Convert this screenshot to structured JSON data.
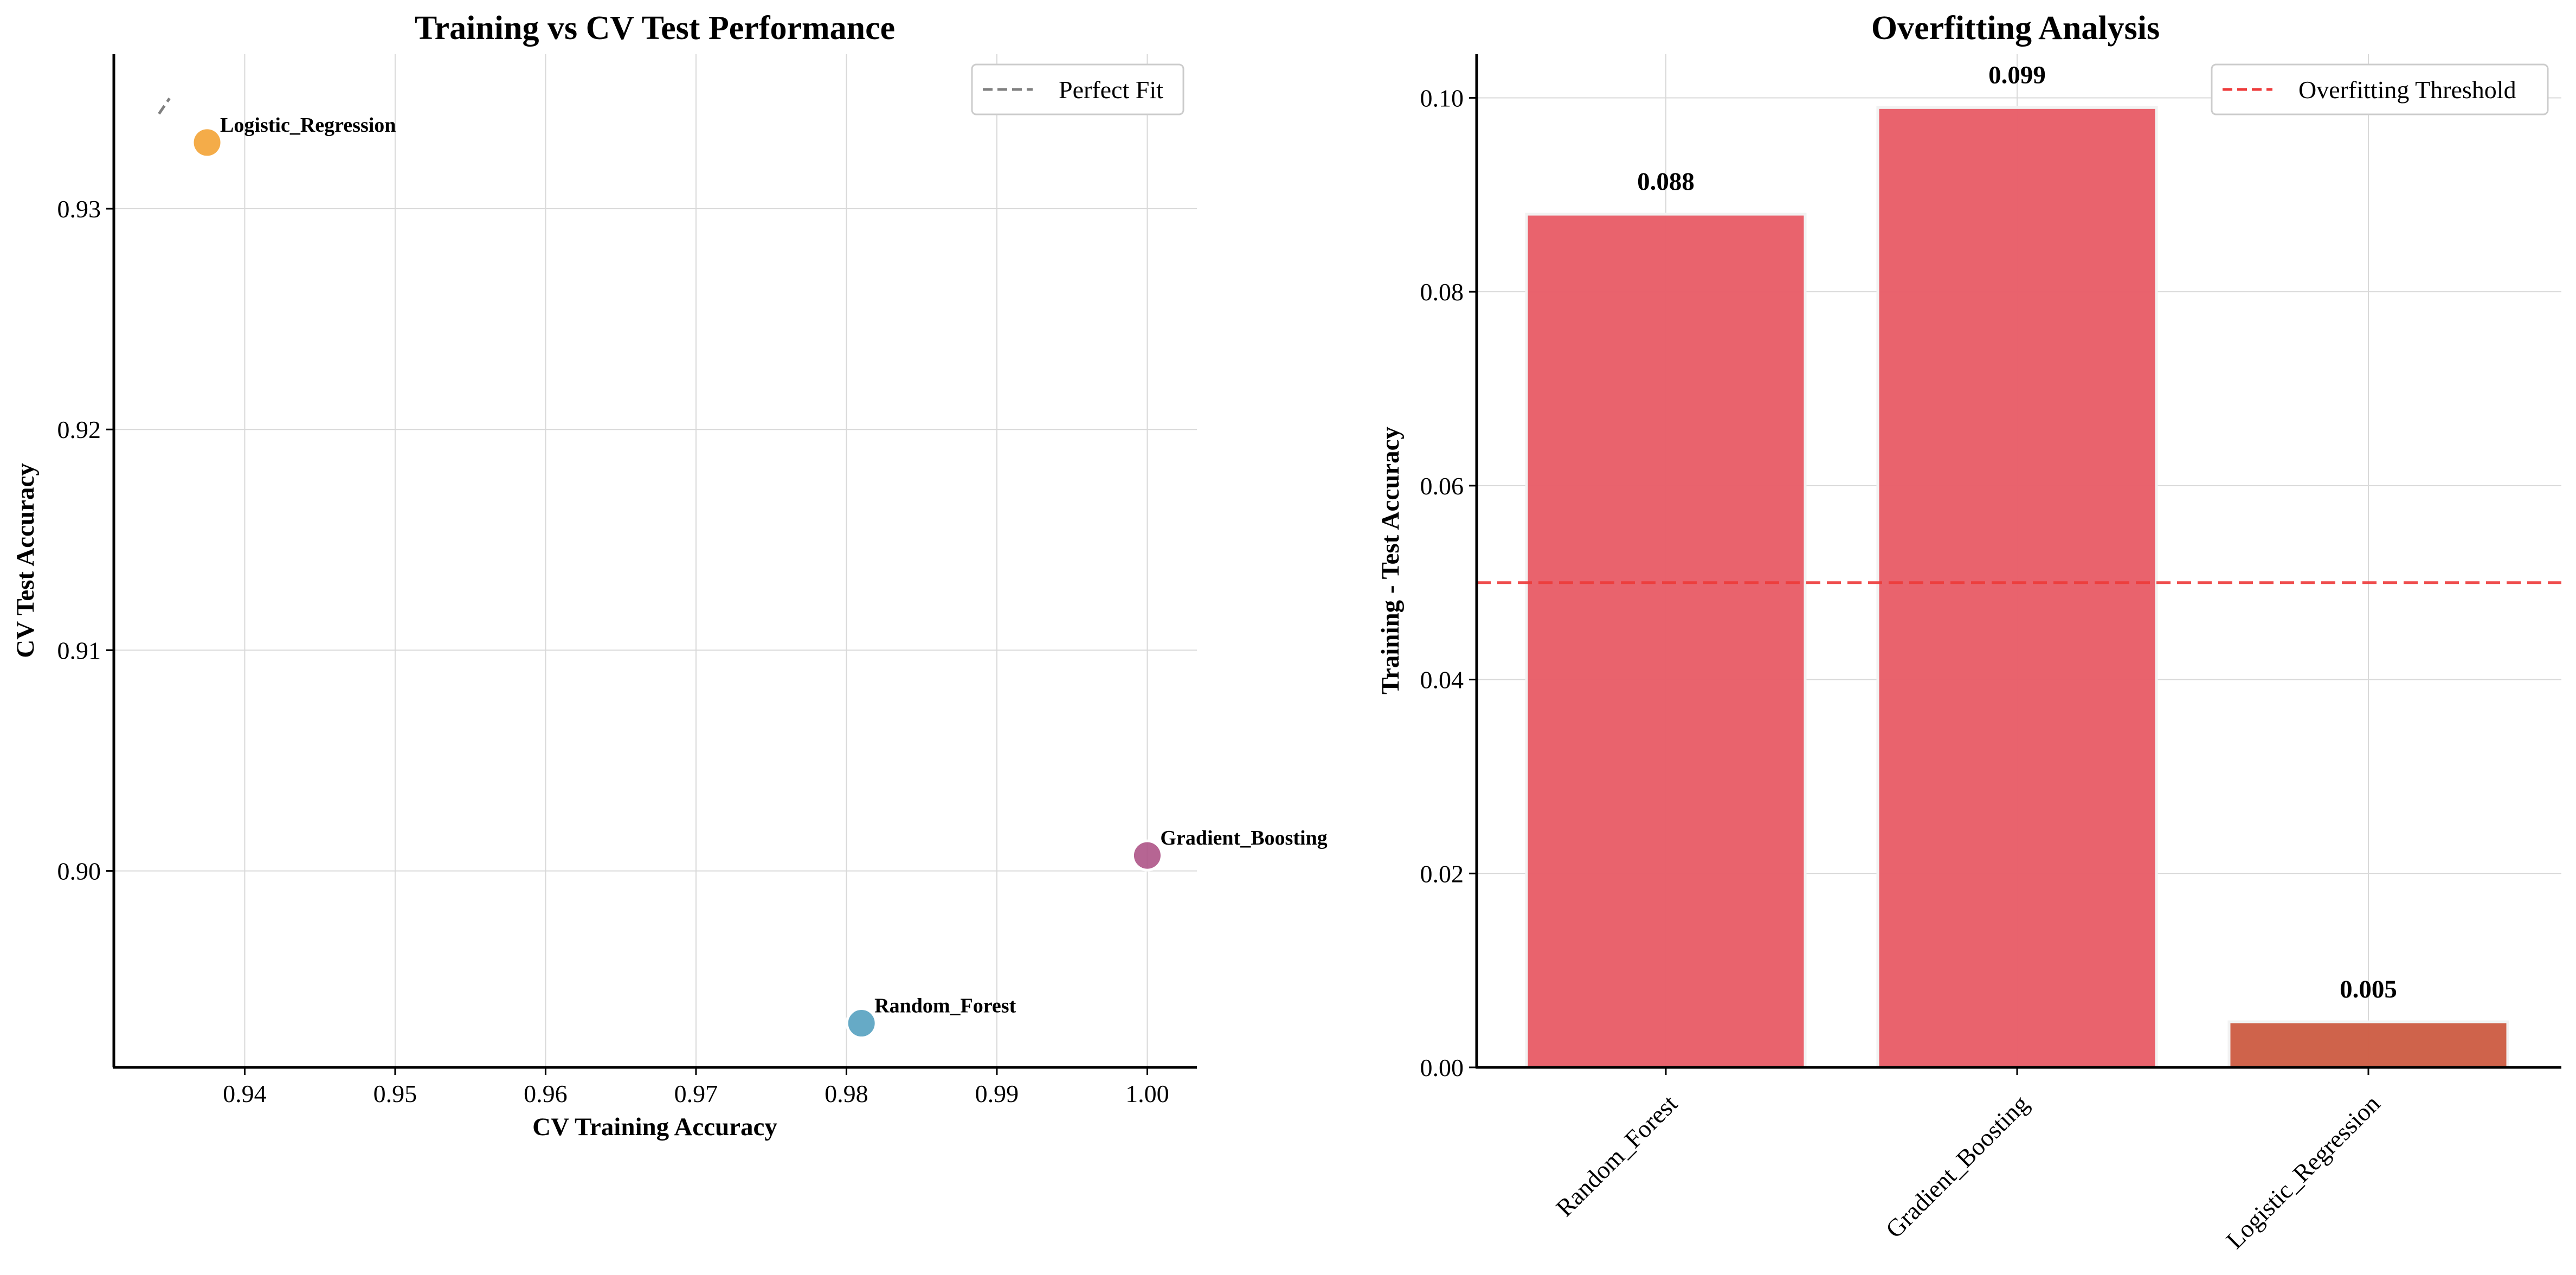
{
  "chart_data": [
    {
      "type": "scatter",
      "title": "Training vs CV Test Performance",
      "xlabel": "CV Training Accuracy",
      "ylabel": "CV Test Accuracy",
      "xlim": [
        0.9313,
        1.0033
      ],
      "ylim": [
        0.8911,
        0.937
      ],
      "xticks": [
        0.94,
        0.95,
        0.96,
        0.97,
        0.98,
        0.99,
        1.0
      ],
      "xtick_labels": [
        "0.94",
        "0.95",
        "0.96",
        "0.97",
        "0.98",
        "0.99",
        "1.00"
      ],
      "yticks": [
        0.9,
        0.91,
        0.92,
        0.93
      ],
      "ytick_labels": [
        "0.90",
        "0.91",
        "0.92",
        "0.93"
      ],
      "grid": true,
      "legend": {
        "placement": "top-right",
        "entries": [
          {
            "label": "Perfect Fit",
            "color": "#808080",
            "style": "dashed"
          }
        ]
      },
      "reference_line": {
        "name": "Perfect Fit",
        "from": [
          0.9343,
          0.9343
        ],
        "to": [
          0.935,
          0.935
        ],
        "color": "#808080"
      },
      "points": [
        {
          "label": "Random_Forest",
          "x": 0.981,
          "y": 0.8931,
          "color": "#5aa3c2"
        },
        {
          "label": "Gradient_Boosting",
          "x": 1.0,
          "y": 0.9007,
          "color": "#b0588a"
        },
        {
          "label": "Logistic_Regression",
          "x": 0.9375,
          "y": 0.933,
          "color": "#f4a63a"
        }
      ]
    },
    {
      "type": "bar",
      "title": "Overfitting Analysis",
      "xlabel": "",
      "ylabel": "Training - Test Accuracy",
      "ylim": [
        0,
        0.1045
      ],
      "yticks": [
        0.0,
        0.02,
        0.04,
        0.06,
        0.08,
        0.1
      ],
      "ytick_labels": [
        "0.00",
        "0.02",
        "0.04",
        "0.06",
        "0.08",
        "0.10"
      ],
      "grid": true,
      "categories": [
        "Random_Forest",
        "Gradient_Boosting",
        "Logistic_Regression"
      ],
      "values": [
        0.088,
        0.099,
        0.0047
      ],
      "value_labels": [
        "0.088",
        "0.099",
        "0.005"
      ],
      "bar_colors": [
        "#e9606b",
        "#e9606b",
        "#cf6048"
      ],
      "threshold": {
        "label": "Overfitting Threshold",
        "value": 0.05,
        "color": "#ee3a3a"
      },
      "legend": {
        "placement": "top-right",
        "entries": [
          {
            "label": "Overfitting Threshold",
            "color": "#ee3a3a",
            "style": "dashed"
          }
        ]
      }
    }
  ]
}
